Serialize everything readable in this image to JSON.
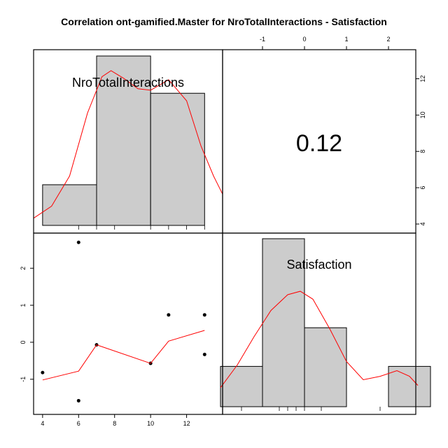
{
  "title": "Correlation ont-gamified.Master for NroTotalInteractions - Satisfaction",
  "chart_data": {
    "type": "pairs",
    "variables": [
      "NroTotalInteractions",
      "Satisfaction"
    ],
    "correlation": {
      "value": 0.12,
      "label": "0.12"
    },
    "x_axis_bottom": {
      "variable": "NroTotalInteractions",
      "ticks": [
        "4",
        "6",
        "8",
        "10",
        "12"
      ],
      "range": [
        3.5,
        14.0
      ]
    },
    "y_axis_left": {
      "variable": "Satisfaction",
      "ticks": [
        "-1",
        "0",
        "1",
        "2"
      ],
      "range": [
        -1.95,
        2.95
      ]
    },
    "x_axis_top": {
      "variable": "Satisfaction",
      "ticks": [
        "-1",
        "0",
        "1",
        "2"
      ],
      "range": [
        -1.95,
        2.65
      ]
    },
    "y_axis_right": {
      "variable": "NroTotalInteractions",
      "ticks": [
        "4",
        "6",
        "8",
        "10",
        "12"
      ],
      "range": [
        3.5,
        13.6
      ]
    },
    "scatter": {
      "x": [
        4,
        6,
        6,
        7,
        10,
        11,
        13,
        13
      ],
      "y": [
        -0.82,
        2.7,
        -1.58,
        -0.07,
        -0.57,
        0.74,
        0.74,
        -0.33
      ]
    },
    "smoother": {
      "x": [
        4,
        6,
        7,
        10,
        11,
        13
      ],
      "y": [
        -1.02,
        -0.78,
        -0.07,
        -0.57,
        0.03,
        0.32
      ]
    },
    "hist_NroTotalInteractions": {
      "bin_edges": [
        4,
        7,
        10,
        13
      ],
      "relative_heights": [
        0.24,
        1.0,
        0.78
      ],
      "rug": [
        6,
        7,
        8,
        10,
        11,
        12,
        13
      ]
    },
    "hist_Satisfaction": {
      "bin_edges": [
        -2,
        -1,
        0,
        1,
        2,
        3
      ],
      "relative_heights": [
        0.24,
        1.0,
        0.47,
        0.0,
        0.24
      ],
      "rug": [
        -1.5,
        -0.6,
        -0.4,
        -0.2,
        0.0,
        0.4,
        1.8
      ]
    },
    "density_NroTotalInteractions": {
      "x": [
        3.5,
        4.5,
        5.5,
        6.5,
        7.3,
        7.8,
        8.5,
        9.3,
        10.0,
        11.0,
        12.0,
        12.8,
        13.5,
        14.0
      ],
      "relative_heights": [
        0.02,
        0.1,
        0.3,
        0.72,
        0.96,
        1.0,
        0.95,
        0.88,
        0.87,
        0.94,
        0.8,
        0.5,
        0.3,
        0.18
      ]
    },
    "density_Satisfaction": {
      "x": [
        -2.0,
        -1.6,
        -1.2,
        -0.8,
        -0.4,
        -0.1,
        0.2,
        0.6,
        1.0,
        1.4,
        1.8,
        2.2,
        2.5,
        2.7
      ],
      "relative_heights": [
        0.1,
        0.3,
        0.55,
        0.78,
        0.92,
        0.95,
        0.88,
        0.62,
        0.33,
        0.17,
        0.2,
        0.25,
        0.2,
        0.12
      ]
    }
  }
}
